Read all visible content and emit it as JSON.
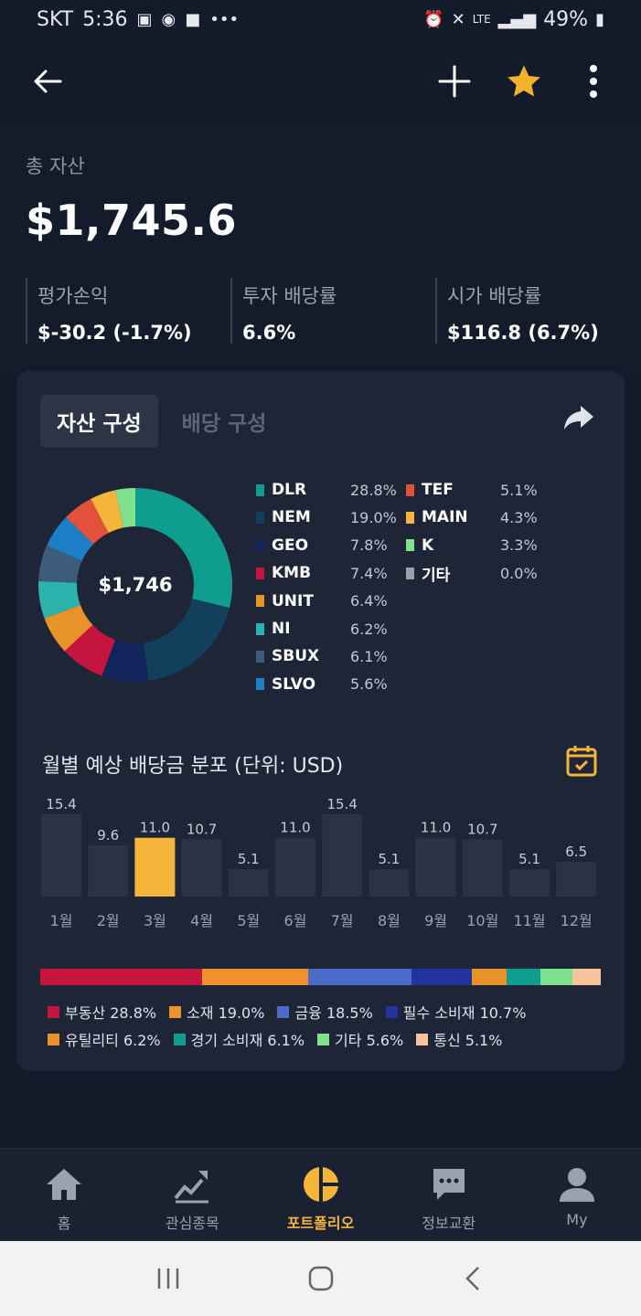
{
  "status_bar": {
    "carrier": "SKT",
    "time": "5:36",
    "battery": "49%",
    "network": "LTE"
  },
  "summary": {
    "total_label": "총 자산",
    "total_value": "$1,745.6",
    "stats": [
      {
        "label": "평가손익",
        "value": "$-30.2 (-1.7%)"
      },
      {
        "label": "투자 배당률",
        "value": "6.6%"
      },
      {
        "label": "시가 배당률",
        "value": "$116.8 (6.7%)"
      }
    ]
  },
  "tabs": [
    {
      "label": "자산 구성",
      "active": true
    },
    {
      "label": "배당 구성",
      "active": false
    }
  ],
  "donut_center": "$1,746",
  "holdings": [
    {
      "name": "DLR",
      "pct": "28.8%",
      "value": 28.8,
      "color": "#0f9d8e"
    },
    {
      "name": "NEM",
      "pct": "19.0%",
      "value": 19.0,
      "color": "#123f5c"
    },
    {
      "name": "GEO",
      "pct": "7.8%",
      "value": 7.8,
      "color": "#12245c"
    },
    {
      "name": "KMB",
      "pct": "7.4%",
      "value": 7.4,
      "color": "#c5143e"
    },
    {
      "name": "UNIT",
      "pct": "6.4%",
      "value": 6.4,
      "color": "#e8922a"
    },
    {
      "name": "NI",
      "pct": "6.2%",
      "value": 6.2,
      "color": "#2cb3ad"
    },
    {
      "name": "SBUX",
      "pct": "6.1%",
      "value": 6.1,
      "color": "#3c5c7a"
    },
    {
      "name": "SLVO",
      "pct": "5.6%",
      "value": 5.6,
      "color": "#1e7fc9"
    },
    {
      "name": "TEF",
      "pct": "5.1%",
      "value": 5.1,
      "color": "#e2513a"
    },
    {
      "name": "MAIN",
      "pct": "4.3%",
      "value": 4.3,
      "color": "#f4b53a"
    },
    {
      "name": "K",
      "pct": "3.3%",
      "value": 3.3,
      "color": "#7fe08e"
    },
    {
      "name": "기타",
      "pct": "0.0%",
      "value": 0.0,
      "color": "#9aa0a6"
    }
  ],
  "dividend_chart": {
    "title": "월별 예상 배당금 분포 (단위: USD)",
    "highlight_color": "#f4b53a",
    "bar_color": "#2a3244",
    "chart_data": {
      "type": "bar",
      "categories": [
        "1월",
        "2월",
        "3월",
        "4월",
        "5월",
        "6월",
        "7월",
        "8월",
        "9월",
        "10월",
        "11월",
        "12월"
      ],
      "values": [
        15.4,
        9.6,
        11.0,
        10.7,
        5.1,
        11.0,
        15.4,
        5.1,
        11.0,
        10.7,
        5.1,
        6.5
      ],
      "value_labels": [
        "15.4",
        "9.6",
        "11.0",
        "10.7",
        "5.1",
        "11.0",
        "15.4",
        "5.1",
        "11.0",
        "10.7",
        "5.1",
        "6.5"
      ],
      "highlight_index": 2,
      "title": "월별 예상 배당금 분포 (단위: USD)"
    }
  },
  "sectors": [
    {
      "label": "부동산 28.8%",
      "value": 28.8,
      "color": "#c5143e"
    },
    {
      "label": "소재 19.0%",
      "value": 19.0,
      "color": "#f0922a"
    },
    {
      "label": "금융 18.5%",
      "value": 18.5,
      "color": "#4a6bc6"
    },
    {
      "label": "필수 소비재 10.7%",
      "value": 10.7,
      "color": "#22349c"
    },
    {
      "label": "유틸리티 6.2%",
      "value": 6.2,
      "color": "#e8922a"
    },
    {
      "label": "경기 소비재 6.1%",
      "value": 6.1,
      "color": "#0f9d8e"
    },
    {
      "label": "기타 5.6%",
      "value": 5.6,
      "color": "#7fe08e"
    },
    {
      "label": "통신 5.1%",
      "value": 5.1,
      "color": "#f7c39a"
    }
  ],
  "bottom_nav": [
    {
      "label": "홈",
      "icon": "home-icon"
    },
    {
      "label": "관심종목",
      "icon": "trend-chart-icon"
    },
    {
      "label": "포트폴리오",
      "icon": "pie-chart-icon",
      "active": true
    },
    {
      "label": "정보교환",
      "icon": "chat-bubble-icon"
    },
    {
      "label": "My",
      "icon": "person-icon"
    }
  ]
}
